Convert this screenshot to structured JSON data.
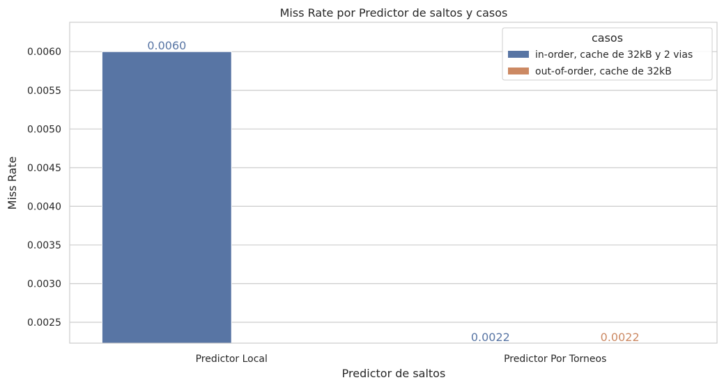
{
  "chart_data": {
    "type": "bar",
    "title": "Miss Rate por Predictor de saltos y casos",
    "xlabel": "Predictor de saltos",
    "ylabel": "Miss Rate",
    "categories": [
      "Predictor Local",
      "Predictor Por Torneos"
    ],
    "series": [
      {
        "name": "in-order, cache de 32kB y 2 vias",
        "color": "#5875a4",
        "values": [
          0.006,
          0.0022
        ]
      },
      {
        "name": "out-of-order, cache de 32kB",
        "color": "#cc8963",
        "values": [
          null,
          0.0022
        ]
      }
    ],
    "data_labels": [
      [
        "0.0060",
        "0.0022"
      ],
      [
        "",
        "0.0022"
      ]
    ],
    "yticks": [
      0.0025,
      0.003,
      0.0035,
      0.004,
      0.0045,
      0.005,
      0.0055,
      0.006
    ],
    "ytick_labels": [
      "0.0025",
      "0.0030",
      "0.0035",
      "0.0040",
      "0.0045",
      "0.0050",
      "0.0055",
      "0.0060"
    ],
    "ylim": [
      0.00223,
      0.00638
    ],
    "grid": "horizontal",
    "legend": {
      "title": "casos",
      "placement": "top-right"
    }
  }
}
